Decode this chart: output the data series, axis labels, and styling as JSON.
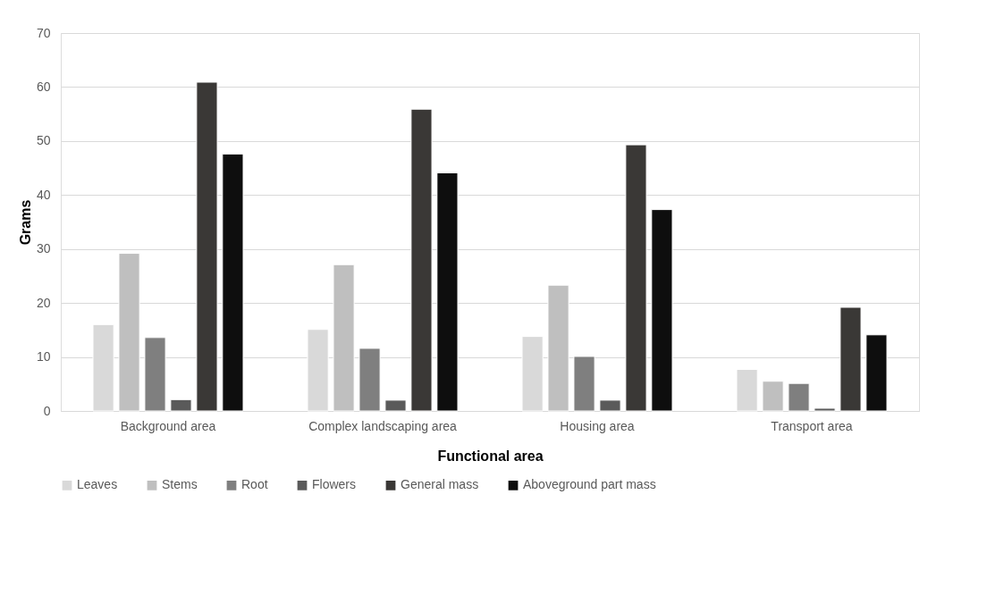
{
  "chart_data": {
    "type": "bar",
    "xlabel": "Functional area",
    "ylabel": "Grams",
    "categories": [
      "Background area",
      "Complex landscaping area",
      "Housing area",
      "Transport area"
    ],
    "series": [
      {
        "name": "Leaves",
        "color": "#d9d9d9",
        "values": [
          16.0,
          15.1,
          13.8,
          7.7
        ]
      },
      {
        "name": "Stems",
        "color": "#bfbfbf",
        "values": [
          29.2,
          27.1,
          23.3,
          5.5
        ]
      },
      {
        "name": "Root",
        "color": "#7f7f7f",
        "values": [
          13.6,
          11.6,
          10.1,
          5.1
        ]
      },
      {
        "name": "Flowers",
        "color": "#5a5a5a",
        "values": [
          2.1,
          2.0,
          2.0,
          0.5
        ]
      },
      {
        "name": "General mass",
        "color": "#3a3836",
        "values": [
          60.9,
          55.9,
          49.3,
          19.2
        ]
      },
      {
        "name": "Aboveground part mass",
        "color": "#0e0e0e",
        "values": [
          47.6,
          44.1,
          37.3,
          14.1
        ]
      }
    ],
    "ylim": [
      0,
      70
    ],
    "yticks": [
      0,
      10,
      20,
      30,
      40,
      50,
      60,
      70
    ],
    "grid": "y",
    "legend": "bottom"
  }
}
